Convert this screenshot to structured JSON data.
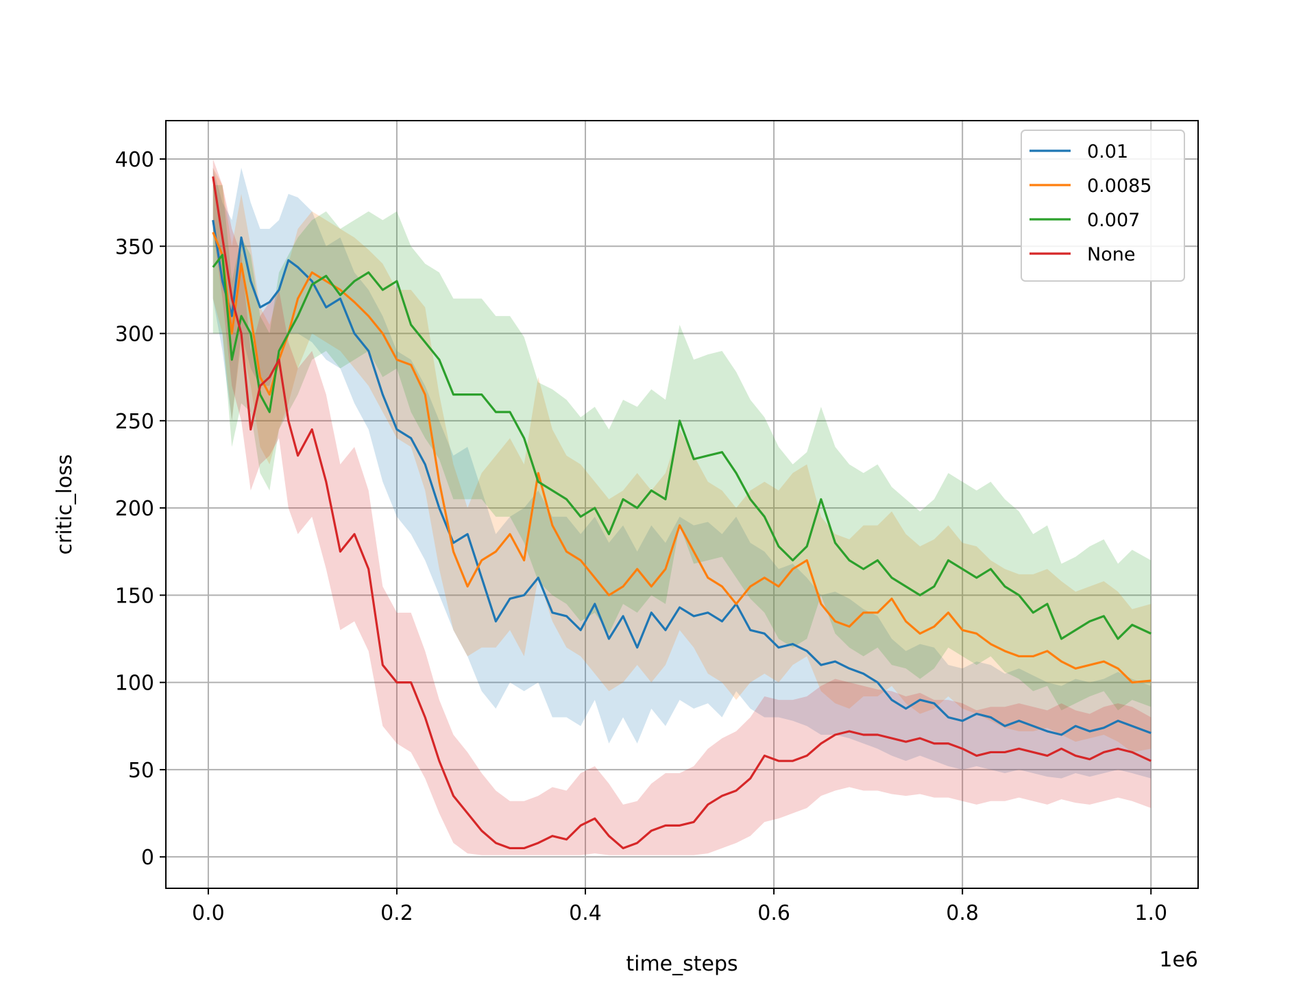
{
  "chart_data": {
    "type": "line",
    "xlabel": "time_steps",
    "ylabel": "critic_loss",
    "x_multiplier_label": "1e6",
    "xlim": [
      -0.045,
      1.05
    ],
    "ylim": [
      -18,
      422
    ],
    "xticks": [
      0.0,
      0.2,
      0.4,
      0.6,
      0.8,
      1.0
    ],
    "xtick_labels": [
      "0.0",
      "0.2",
      "0.4",
      "0.6",
      "0.8",
      "1.0"
    ],
    "yticks": [
      0,
      50,
      100,
      150,
      200,
      250,
      300,
      350,
      400
    ],
    "ytick_labels": [
      "0",
      "50",
      "100",
      "150",
      "200",
      "250",
      "300",
      "350",
      "400"
    ],
    "grid": true,
    "legend_position": "top-right",
    "shaded_bands": true,
    "series": [
      {
        "name": "0.01",
        "color": "#1f77b4",
        "x": [
          0.005,
          0.015,
          0.025,
          0.035,
          0.045,
          0.055,
          0.065,
          0.075,
          0.085,
          0.095,
          0.11,
          0.125,
          0.14,
          0.155,
          0.17,
          0.185,
          0.2,
          0.215,
          0.23,
          0.245,
          0.26,
          0.275,
          0.29,
          0.305,
          0.32,
          0.335,
          0.35,
          0.365,
          0.38,
          0.395,
          0.41,
          0.425,
          0.44,
          0.455,
          0.47,
          0.485,
          0.5,
          0.515,
          0.53,
          0.545,
          0.56,
          0.575,
          0.59,
          0.605,
          0.62,
          0.635,
          0.65,
          0.665,
          0.68,
          0.695,
          0.71,
          0.725,
          0.74,
          0.755,
          0.77,
          0.785,
          0.8,
          0.815,
          0.83,
          0.845,
          0.86,
          0.875,
          0.89,
          0.905,
          0.92,
          0.935,
          0.95,
          0.965,
          0.98,
          1.0
        ],
        "y": [
          365,
          330,
          310,
          355,
          330,
          315,
          318,
          325,
          342,
          338,
          330,
          315,
          320,
          300,
          290,
          265,
          245,
          240,
          225,
          200,
          180,
          185,
          160,
          135,
          148,
          150,
          160,
          140,
          138,
          130,
          145,
          125,
          138,
          120,
          140,
          130,
          143,
          138,
          140,
          135,
          145,
          130,
          128,
          120,
          122,
          118,
          110,
          112,
          108,
          105,
          100,
          90,
          85,
          90,
          88,
          80,
          78,
          82,
          80,
          75,
          78,
          75,
          72,
          70,
          75,
          72,
          74,
          78,
          75,
          71
        ],
        "lower": [
          320,
          290,
          250,
          300,
          280,
          270,
          270,
          290,
          300,
          300,
          295,
          285,
          280,
          260,
          245,
          215,
          195,
          185,
          170,
          150,
          130,
          115,
          95,
          85,
          100,
          95,
          100,
          80,
          80,
          75,
          90,
          65,
          80,
          65,
          85,
          75,
          90,
          85,
          88,
          80,
          95,
          85,
          80,
          80,
          78,
          75,
          70,
          70,
          68,
          65,
          62,
          58,
          55,
          58,
          55,
          52,
          50,
          52,
          50,
          48,
          50,
          48,
          46,
          45,
          48,
          46,
          48,
          50,
          48,
          45
        ],
        "upper": [
          395,
          375,
          365,
          395,
          375,
          360,
          360,
          365,
          380,
          378,
          370,
          350,
          355,
          335,
          325,
          310,
          290,
          285,
          270,
          250,
          230,
          235,
          210,
          185,
          195,
          200,
          210,
          195,
          195,
          185,
          195,
          180,
          190,
          175,
          190,
          180,
          195,
          190,
          192,
          185,
          195,
          180,
          175,
          165,
          168,
          160,
          150,
          152,
          148,
          142,
          138,
          125,
          118,
          122,
          120,
          110,
          108,
          112,
          110,
          105,
          108,
          104,
          100,
          98,
          102,
          100,
          102,
          106,
          102,
          98
        ]
      },
      {
        "name": "0.0085",
        "color": "#ff7f0e",
        "x": [
          0.005,
          0.015,
          0.025,
          0.035,
          0.045,
          0.055,
          0.065,
          0.075,
          0.085,
          0.095,
          0.11,
          0.125,
          0.14,
          0.155,
          0.17,
          0.185,
          0.2,
          0.215,
          0.23,
          0.245,
          0.26,
          0.275,
          0.29,
          0.305,
          0.32,
          0.335,
          0.35,
          0.365,
          0.38,
          0.395,
          0.41,
          0.425,
          0.44,
          0.455,
          0.47,
          0.485,
          0.5,
          0.515,
          0.53,
          0.545,
          0.56,
          0.575,
          0.59,
          0.605,
          0.62,
          0.635,
          0.65,
          0.665,
          0.68,
          0.695,
          0.71,
          0.725,
          0.74,
          0.755,
          0.77,
          0.785,
          0.8,
          0.815,
          0.83,
          0.845,
          0.86,
          0.875,
          0.89,
          0.905,
          0.92,
          0.935,
          0.95,
          0.965,
          0.98,
          1.0
        ],
        "y": [
          358,
          345,
          300,
          340,
          310,
          275,
          265,
          285,
          300,
          320,
          335,
          330,
          325,
          318,
          310,
          300,
          285,
          282,
          265,
          215,
          175,
          155,
          170,
          175,
          185,
          170,
          220,
          190,
          175,
          170,
          160,
          150,
          155,
          165,
          155,
          165,
          190,
          175,
          160,
          155,
          145,
          155,
          160,
          155,
          165,
          170,
          145,
          135,
          132,
          140,
          140,
          148,
          135,
          128,
          132,
          140,
          130,
          128,
          122,
          118,
          115,
          115,
          118,
          112,
          108,
          110,
          112,
          108,
          100,
          101
        ],
        "lower": [
          320,
          300,
          250,
          295,
          270,
          235,
          225,
          245,
          260,
          280,
          300,
          295,
          290,
          280,
          270,
          255,
          240,
          235,
          210,
          165,
          130,
          115,
          120,
          120,
          130,
          115,
          160,
          135,
          120,
          115,
          105,
          95,
          100,
          110,
          100,
          110,
          130,
          120,
          105,
          100,
          90,
          100,
          105,
          100,
          110,
          115,
          95,
          88,
          85,
          92,
          92,
          98,
          88,
          82,
          85,
          92,
          85,
          82,
          78,
          74,
          72,
          72,
          74,
          70,
          66,
          68,
          70,
          66,
          60,
          62
        ],
        "upper": [
          395,
          385,
          350,
          380,
          350,
          315,
          305,
          325,
          340,
          360,
          370,
          365,
          360,
          355,
          348,
          340,
          325,
          325,
          315,
          265,
          225,
          200,
          220,
          230,
          240,
          225,
          275,
          245,
          230,
          225,
          215,
          205,
          210,
          220,
          210,
          220,
          245,
          230,
          215,
          210,
          200,
          210,
          215,
          210,
          220,
          225,
          195,
          185,
          182,
          190,
          190,
          198,
          185,
          178,
          182,
          190,
          180,
          178,
          170,
          165,
          162,
          162,
          165,
          158,
          152,
          155,
          158,
          152,
          142,
          145
        ]
      },
      {
        "name": "0.007",
        "color": "#2ca02c",
        "x": [
          0.005,
          0.015,
          0.025,
          0.035,
          0.045,
          0.055,
          0.065,
          0.075,
          0.085,
          0.095,
          0.11,
          0.125,
          0.14,
          0.155,
          0.17,
          0.185,
          0.2,
          0.215,
          0.23,
          0.245,
          0.26,
          0.275,
          0.29,
          0.305,
          0.32,
          0.335,
          0.35,
          0.365,
          0.38,
          0.395,
          0.41,
          0.425,
          0.44,
          0.455,
          0.47,
          0.485,
          0.5,
          0.515,
          0.53,
          0.545,
          0.56,
          0.575,
          0.59,
          0.605,
          0.62,
          0.635,
          0.65,
          0.665,
          0.68,
          0.695,
          0.71,
          0.725,
          0.74,
          0.755,
          0.77,
          0.785,
          0.8,
          0.815,
          0.83,
          0.845,
          0.86,
          0.875,
          0.89,
          0.905,
          0.92,
          0.935,
          0.95,
          0.965,
          0.98,
          1.0
        ],
        "y": [
          338,
          345,
          285,
          310,
          300,
          265,
          255,
          290,
          300,
          310,
          328,
          333,
          322,
          330,
          335,
          325,
          330,
          305,
          295,
          285,
          265,
          265,
          265,
          255,
          255,
          240,
          215,
          210,
          205,
          195,
          200,
          185,
          205,
          200,
          210,
          205,
          250,
          228,
          230,
          232,
          220,
          205,
          195,
          178,
          170,
          178,
          205,
          180,
          170,
          165,
          170,
          160,
          155,
          150,
          155,
          170,
          165,
          160,
          165,
          155,
          150,
          140,
          145,
          125,
          130,
          135,
          138,
          125,
          133,
          128
        ],
        "lower": [
          300,
          300,
          235,
          260,
          255,
          220,
          210,
          245,
          255,
          265,
          285,
          290,
          280,
          285,
          290,
          275,
          280,
          255,
          240,
          228,
          205,
          205,
          205,
          195,
          195,
          180,
          158,
          150,
          145,
          135,
          140,
          128,
          145,
          140,
          150,
          145,
          190,
          168,
          170,
          172,
          160,
          148,
          140,
          125,
          120,
          125,
          150,
          128,
          120,
          115,
          120,
          110,
          108,
          102,
          108,
          120,
          115,
          110,
          115,
          106,
          102,
          95,
          98,
          84,
          88,
          92,
          95,
          84,
          90,
          86
        ],
        "upper": [
          385,
          385,
          330,
          355,
          345,
          310,
          300,
          335,
          345,
          355,
          365,
          370,
          360,
          365,
          370,
          365,
          370,
          350,
          340,
          335,
          320,
          320,
          320,
          310,
          310,
          298,
          272,
          268,
          262,
          252,
          258,
          245,
          262,
          258,
          268,
          262,
          305,
          285,
          288,
          290,
          278,
          262,
          252,
          235,
          225,
          232,
          258,
          235,
          225,
          220,
          225,
          212,
          205,
          198,
          205,
          220,
          215,
          210,
          215,
          205,
          198,
          185,
          190,
          168,
          172,
          178,
          182,
          168,
          176,
          170
        ]
      },
      {
        "name": "None",
        "color": "#d62728",
        "x": [
          0.005,
          0.015,
          0.025,
          0.035,
          0.045,
          0.055,
          0.065,
          0.075,
          0.085,
          0.095,
          0.11,
          0.125,
          0.14,
          0.155,
          0.17,
          0.185,
          0.2,
          0.215,
          0.23,
          0.245,
          0.26,
          0.275,
          0.29,
          0.305,
          0.32,
          0.335,
          0.35,
          0.365,
          0.38,
          0.395,
          0.41,
          0.425,
          0.44,
          0.455,
          0.47,
          0.485,
          0.5,
          0.515,
          0.53,
          0.545,
          0.56,
          0.575,
          0.59,
          0.605,
          0.62,
          0.635,
          0.65,
          0.665,
          0.68,
          0.695,
          0.71,
          0.725,
          0.74,
          0.755,
          0.77,
          0.785,
          0.8,
          0.815,
          0.83,
          0.845,
          0.86,
          0.875,
          0.89,
          0.905,
          0.92,
          0.935,
          0.95,
          0.965,
          0.98,
          1.0
        ],
        "y": [
          390,
          355,
          320,
          300,
          245,
          270,
          275,
          285,
          250,
          230,
          245,
          215,
          175,
          185,
          165,
          110,
          100,
          100,
          80,
          55,
          35,
          25,
          15,
          8,
          5,
          5,
          8,
          12,
          10,
          18,
          22,
          12,
          5,
          8,
          15,
          18,
          18,
          20,
          30,
          35,
          38,
          45,
          58,
          55,
          55,
          58,
          65,
          70,
          72,
          70,
          70,
          68,
          66,
          68,
          65,
          65,
          62,
          58,
          60,
          60,
          62,
          60,
          58,
          62,
          58,
          56,
          60,
          62,
          60,
          55
        ],
        "lower": [
          360,
          320,
          270,
          250,
          210,
          225,
          230,
          240,
          200,
          185,
          195,
          165,
          130,
          135,
          118,
          75,
          65,
          60,
          45,
          25,
          8,
          2,
          1,
          1,
          1,
          1,
          1,
          1,
          1,
          1,
          2,
          1,
          1,
          1,
          1,
          1,
          1,
          1,
          2,
          5,
          8,
          12,
          20,
          22,
          25,
          28,
          35,
          38,
          40,
          38,
          38,
          36,
          35,
          36,
          34,
          34,
          32,
          30,
          32,
          32,
          34,
          32,
          30,
          33,
          31,
          30,
          32,
          34,
          32,
          28
        ],
        "upper": [
          400,
          385,
          360,
          345,
          290,
          310,
          318,
          325,
          295,
          280,
          290,
          265,
          225,
          235,
          210,
          155,
          140,
          140,
          118,
          90,
          70,
          60,
          48,
          38,
          32,
          32,
          35,
          40,
          38,
          48,
          52,
          42,
          30,
          32,
          42,
          48,
          48,
          52,
          62,
          68,
          72,
          80,
          92,
          90,
          90,
          92,
          98,
          102,
          100,
          98,
          96,
          95,
          92,
          94,
          90,
          90,
          88,
          84,
          86,
          86,
          88,
          86,
          84,
          88,
          84,
          82,
          86,
          88,
          86,
          80
        ]
      }
    ]
  }
}
